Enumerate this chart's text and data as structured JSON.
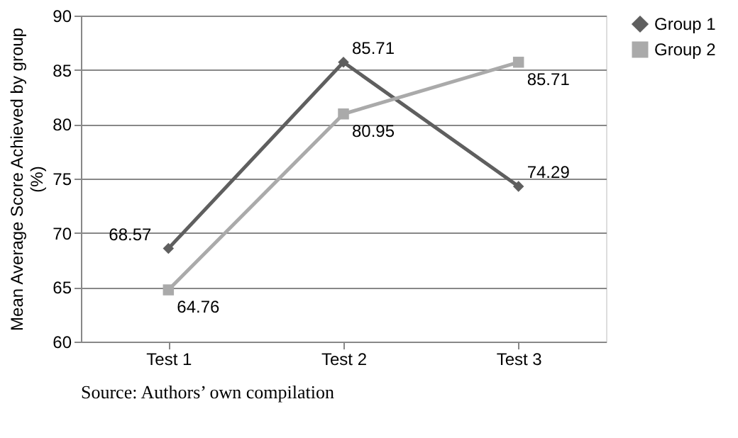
{
  "chart_data": {
    "type": "line",
    "ylabel": "Mean Average Score Achieved by group (%)",
    "categories": [
      "Test 1",
      "Test 2",
      "Test 3"
    ],
    "series": [
      {
        "name": "Group 1",
        "color": "#5f5f5f",
        "marker": "diamond",
        "values": [
          68.57,
          85.71,
          74.29
        ]
      },
      {
        "name": "Group 2",
        "color": "#aaaaaa",
        "marker": "square",
        "values": [
          64.76,
          80.95,
          85.71
        ]
      }
    ],
    "ylim": [
      60,
      90
    ],
    "yticks": [
      60,
      65,
      70,
      75,
      80,
      85,
      90
    ],
    "grid": "y",
    "legend": "right",
    "data_labels": true,
    "line_style": "solid",
    "annotations": [
      "Source: Authors’ own compilation"
    ]
  }
}
